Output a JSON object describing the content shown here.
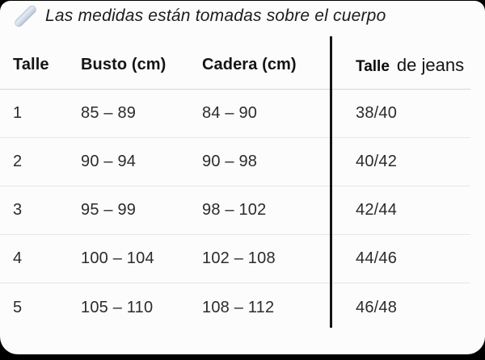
{
  "note": {
    "icon": "ruler-icon",
    "text": "Las medidas están tomadas sobre el cuerpo"
  },
  "table": {
    "headers": {
      "talle": "Talle",
      "busto": "Busto (cm)",
      "cadera": "Cadera (cm)",
      "jeans_bold": "Talle",
      "jeans_rest": "de jeans"
    },
    "rows": [
      [
        "1",
        "85 – 89",
        "84 – 90",
        "38/40"
      ],
      [
        "2",
        "90 – 94",
        "90 – 98",
        "40/42"
      ],
      [
        "3",
        "95 – 99",
        "98 – 102",
        "42/44"
      ],
      [
        "4",
        "100 – 104",
        "102 – 108",
        "44/46"
      ],
      [
        "5",
        "105 – 110",
        "108 – 112",
        "46/48"
      ]
    ]
  },
  "chart_data": {
    "type": "table",
    "title": "Las medidas están tomadas sobre el cuerpo",
    "columns": [
      "Talle",
      "Busto (cm)",
      "Cadera (cm)",
      "Talle de jeans"
    ],
    "rows": [
      [
        "1",
        "85 – 89",
        "84 – 90",
        "38/40"
      ],
      [
        "2",
        "90 – 94",
        "90 – 98",
        "40/42"
      ],
      [
        "3",
        "95 – 99",
        "98 – 102",
        "42/44"
      ],
      [
        "4",
        "100 – 104",
        "102 – 108",
        "44/46"
      ],
      [
        "5",
        "105 – 110",
        "108 – 112",
        "46/48"
      ]
    ]
  },
  "colors": {
    "background": "#000000",
    "card": "#fcfcfc",
    "text": "#1c1c1e",
    "divider": "#141414",
    "row_separator": "#e7e7e7",
    "ruler_icon": "#c2cddd"
  }
}
